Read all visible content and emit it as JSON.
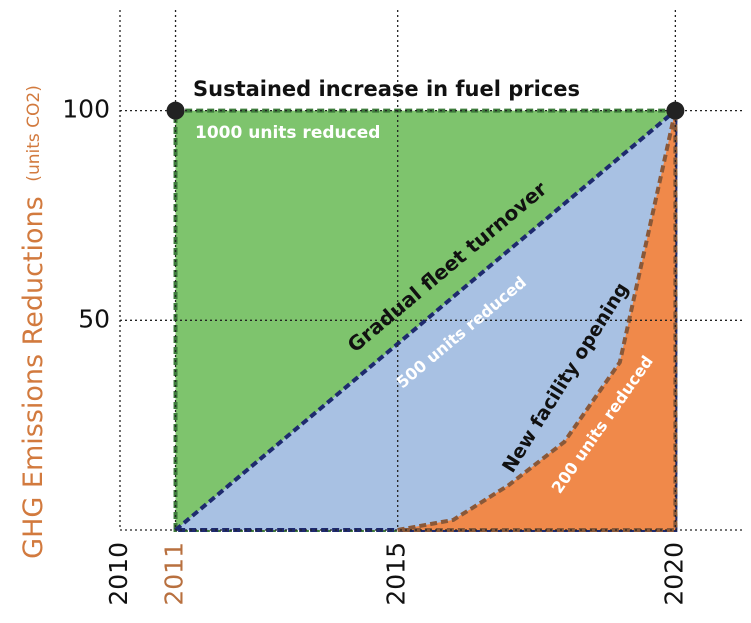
{
  "chart_data": {
    "type": "area",
    "y_label": "GHG Emissions Reductions",
    "y_label_unit": "(units CO2)",
    "x": [
      2011,
      2012,
      2013,
      2014,
      2015,
      2016,
      2017,
      2018,
      2019,
      2020
    ],
    "xlim": [
      2010,
      2021.2
    ],
    "xticks": [
      2010,
      2011,
      2015,
      2020
    ],
    "ylim": [
      0,
      124
    ],
    "yticks": [
      50,
      100
    ],
    "grid": true,
    "series": [
      {
        "name": "Sustained increase in fuel prices",
        "label": "1000 units reduced",
        "color": "#7ec46d",
        "edge": "#3d7b3b",
        "values": [
          100,
          100,
          100,
          100,
          100,
          100,
          100,
          100,
          100,
          100
        ]
      },
      {
        "name": "Gradual fleet turnover",
        "label": "500 units reduced",
        "color": "#a8c1e3",
        "edge": "#1e2a6e",
        "values": [
          0,
          11.1,
          22.2,
          33.3,
          44.4,
          55.6,
          66.7,
          77.8,
          88.9,
          100
        ]
      },
      {
        "name": "New facility opening",
        "label": "200 units reduced",
        "color": "#f0894a",
        "edge": "#8a5838",
        "values": [
          null,
          null,
          null,
          null,
          0,
          2.4,
          10.7,
          21,
          40,
          100
        ]
      }
    ]
  }
}
